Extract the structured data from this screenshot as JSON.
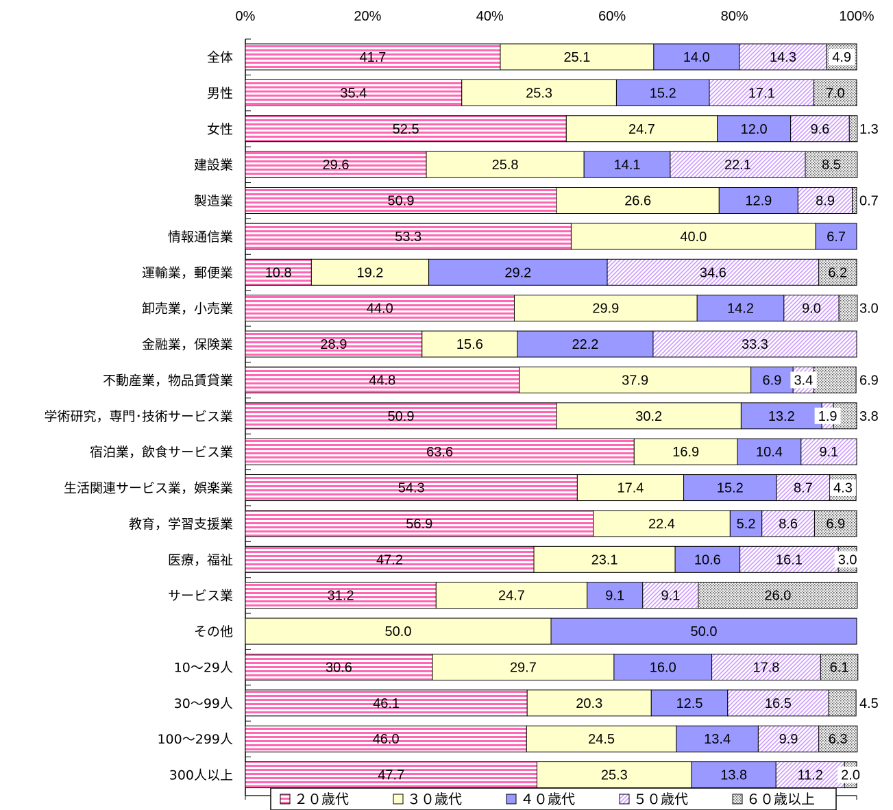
{
  "chart_data": {
    "type": "bar",
    "orientation": "horizontal",
    "stacked": "percent",
    "xlim": [
      0,
      100
    ],
    "x_ticks": [
      "0%",
      "20%",
      "40%",
      "60%",
      "80%",
      "100%"
    ],
    "categories": [
      "全体",
      "男性",
      "女性",
      "建設業",
      "製造業",
      "情報通信業",
      "運輸業，郵便業",
      "卸売業，小売業",
      "金融業，保険業",
      "不動産業，物品賃貸業",
      "学術研究，専門･技術サービス業",
      "宿泊業，飲食サービス業",
      "生活関連サービス業，娯楽業",
      "教育，学習支援業",
      "医療，福祉",
      "サービス業",
      "その他",
      "10～29人",
      "30～99人",
      "100～299人",
      "300人以上"
    ],
    "series": [
      {
        "name": "２０歳代",
        "color": "#ff66b3",
        "pattern": "hstripe",
        "values": [
          41.7,
          35.4,
          52.5,
          29.6,
          50.9,
          53.3,
          10.8,
          44.0,
          28.9,
          44.8,
          50.9,
          63.6,
          54.3,
          56.9,
          47.2,
          31.2,
          0,
          30.6,
          46.1,
          46.0,
          47.7
        ]
      },
      {
        "name": "３０歳代",
        "color": "#ffffcc",
        "pattern": "solid",
        "values": [
          25.1,
          25.3,
          24.7,
          25.8,
          26.6,
          40.0,
          19.2,
          29.9,
          15.6,
          37.9,
          30.2,
          16.9,
          17.4,
          22.4,
          23.1,
          24.7,
          50.0,
          29.7,
          20.3,
          24.5,
          25.3
        ]
      },
      {
        "name": "４０歳代",
        "color": "#9999ff",
        "pattern": "solid",
        "values": [
          14.0,
          15.2,
          12.0,
          14.1,
          12.9,
          6.7,
          29.2,
          14.2,
          22.2,
          6.9,
          13.2,
          10.4,
          15.2,
          5.2,
          10.6,
          9.1,
          50.0,
          16.0,
          12.5,
          13.4,
          13.8
        ]
      },
      {
        "name": "５０歳代",
        "color": "#cc99ff",
        "pattern": "diag",
        "values": [
          14.3,
          17.1,
          9.6,
          22.1,
          8.9,
          0,
          34.6,
          9.0,
          33.3,
          3.4,
          1.9,
          9.1,
          8.7,
          8.6,
          16.1,
          9.1,
          0,
          17.8,
          16.5,
          9.9,
          11.2
        ]
      },
      {
        "name": "６０歳以上",
        "color": "#e0e0e0",
        "pattern": "dots",
        "values": [
          4.9,
          7.0,
          1.3,
          8.5,
          0.7,
          0,
          6.2,
          3.0,
          0,
          6.9,
          3.8,
          0,
          4.3,
          6.9,
          3.0,
          26.0,
          0,
          6.1,
          4.5,
          6.3,
          2.0
        ]
      }
    ],
    "outside_value_labels": [
      {
        "category": "女性",
        "series": "６０歳以上",
        "text": "1.3"
      },
      {
        "category": "製造業",
        "series": "６０歳以上",
        "text": "0.7"
      },
      {
        "category": "卸売業，小売業",
        "series": "６０歳以上",
        "text": "3.0"
      },
      {
        "category": "不動産業，物品賃貸業",
        "series": "６０歳以上",
        "text": "6.9"
      },
      {
        "category": "学術研究，専門･技術サービス業",
        "series": "６０歳以上",
        "text": "3.8"
      },
      {
        "category": "30～99人",
        "series": "６０歳以上",
        "text": "4.5"
      }
    ]
  }
}
